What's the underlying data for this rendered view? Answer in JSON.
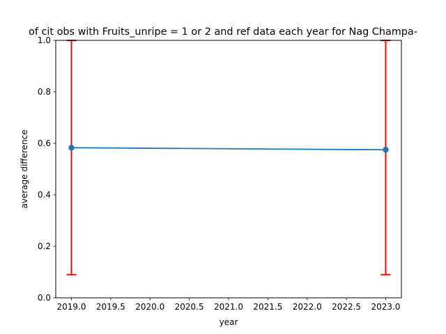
{
  "chart_data": {
    "type": "line",
    "title": "of cit obs with Fruits_unripe = 1 or 2 and ref data each year for Nag Champa-",
    "xlabel": "year",
    "ylabel": "average difference",
    "xlim": [
      2018.8,
      2023.2
    ],
    "ylim": [
      0.0,
      1.0
    ],
    "xticks": [
      "2019.0",
      "2019.5",
      "2020.0",
      "2020.5",
      "2021.0",
      "2021.5",
      "2022.0",
      "2022.5",
      "2023.0"
    ],
    "yticks": [
      "0.0",
      "0.2",
      "0.4",
      "0.6",
      "0.8",
      "1.0"
    ],
    "grid": false,
    "series": [
      {
        "x": [
          2019,
          2023
        ],
        "y": [
          0.583,
          0.575
        ],
        "error_low": [
          0.09,
          0.09
        ],
        "error_high": [
          1.0,
          1.0
        ],
        "color": "#1f77b4",
        "error_color": "#ff0000"
      }
    ]
  }
}
